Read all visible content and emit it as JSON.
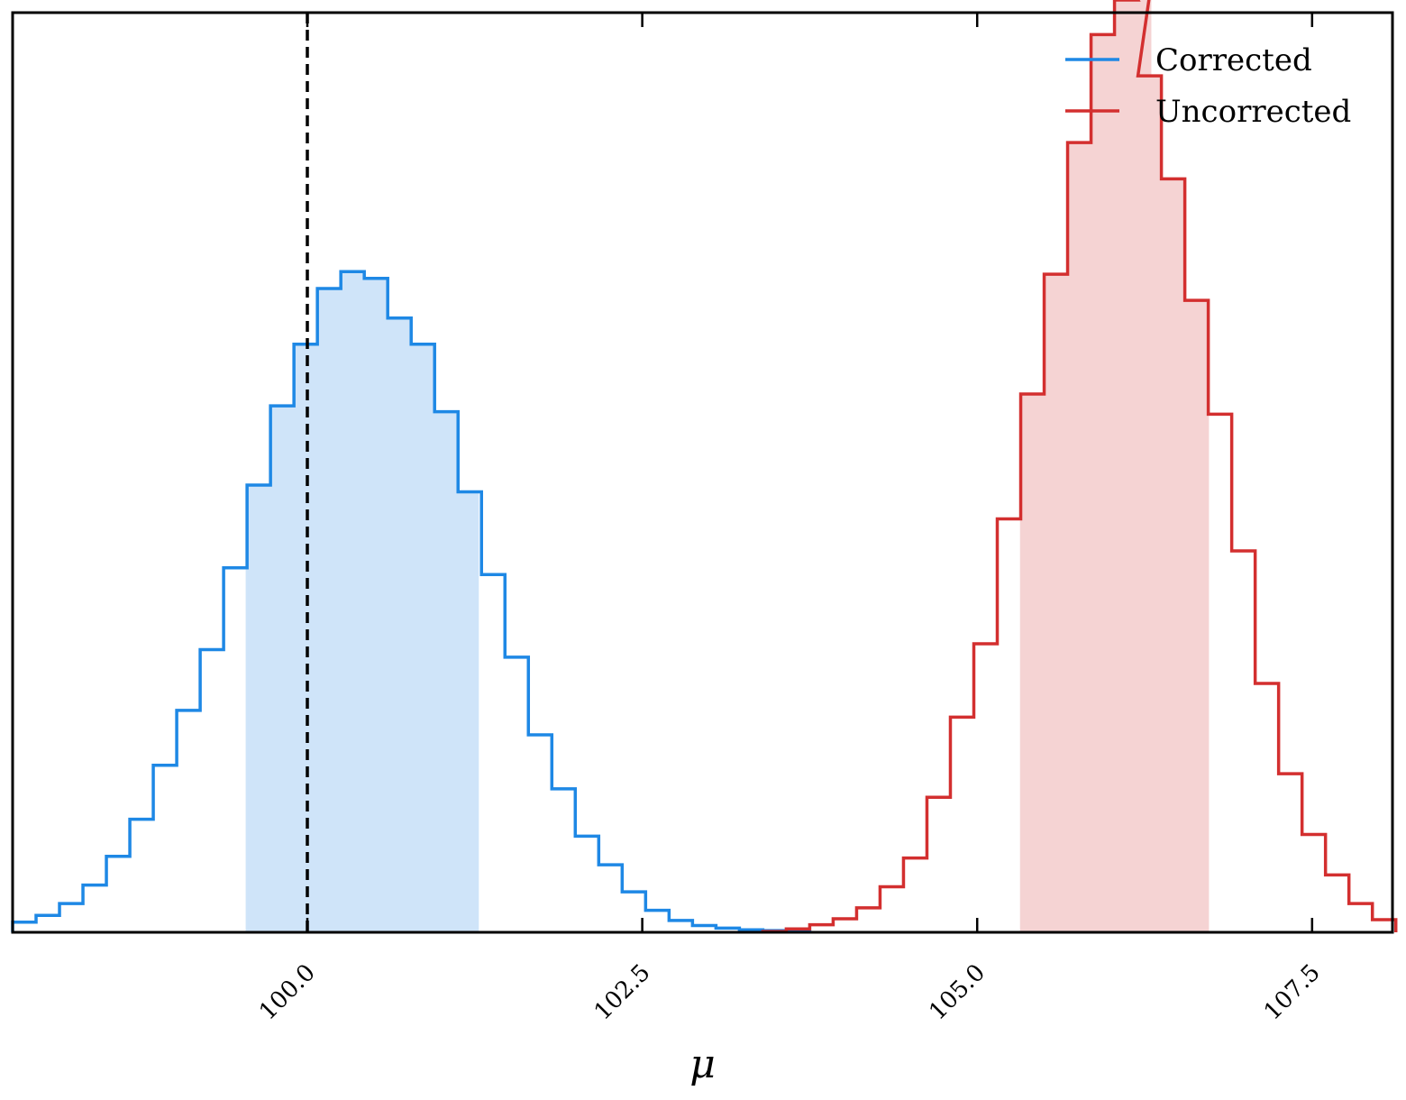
{
  "chart_data": {
    "type": "histogram",
    "title": "",
    "xlabel": "μ",
    "ylabel": "",
    "xlim": [
      97.8,
      108.1
    ],
    "ylim": [
      0,
      1.09
    ],
    "xticks": [
      100.0,
      102.5,
      105.0,
      107.5
    ],
    "xtick_labels": [
      "100.0",
      "102.5",
      "105.0",
      "107.5"
    ],
    "yticks_shown": false,
    "grid": false,
    "legend_position": "top-right",
    "reference_line": {
      "x": 100.0,
      "style": "dashed",
      "color": "#000000"
    },
    "series": [
      {
        "name": "Corrected",
        "color": "#1e88e5",
        "fill_color": "#cfe4f9",
        "shaded_interval": [
          99.55,
          101.27
        ],
        "bins_left": [
          97.8,
          97.975,
          98.15,
          98.325,
          98.5,
          98.675,
          98.85,
          99.025,
          99.2,
          99.375,
          99.55,
          99.725,
          99.9,
          100.075,
          100.25,
          100.425,
          100.6,
          100.775,
          100.95,
          101.125,
          101.3,
          101.475,
          101.65,
          101.825,
          102.0,
          102.175,
          102.35,
          102.525,
          102.7,
          102.875,
          103.05,
          103.225,
          103.4,
          103.575
        ],
        "bin_width": 0.175,
        "values": [
          0.012,
          0.02,
          0.034,
          0.056,
          0.09,
          0.134,
          0.198,
          0.263,
          0.335,
          0.432,
          0.53,
          0.624,
          0.697,
          0.763,
          0.783,
          0.775,
          0.728,
          0.697,
          0.617,
          0.522,
          0.424,
          0.326,
          0.234,
          0.17,
          0.114,
          0.08,
          0.048,
          0.026,
          0.014,
          0.008,
          0.005,
          0.003,
          0.002,
          0.001
        ]
      },
      {
        "name": "Uncorrected",
        "color": "#d32f2f",
        "fill_color": "#f5d3d3",
        "shaded_interval": [
          105.33,
          106.72
        ],
        "bins_left": [
          103.4,
          103.575,
          103.75,
          103.925,
          104.1,
          104.275,
          104.45,
          104.625,
          104.8,
          104.975,
          105.15,
          105.325,
          105.5,
          105.675,
          105.85,
          106.025,
          106.125,
          106.2,
          106.375,
          106.55,
          106.725,
          106.9,
          107.075,
          107.25,
          107.425,
          107.6,
          107.775,
          107.95
        ],
        "bin_width": 0.175,
        "values": [
          0.001,
          0.004,
          0.009,
          0.016,
          0.029,
          0.054,
          0.088,
          0.16,
          0.255,
          0.342,
          0.49,
          0.638,
          0.78,
          0.936,
          1.064,
          1.105,
          1.125,
          1.015,
          0.893,
          0.749,
          0.614,
          0.452,
          0.295,
          0.188,
          0.116,
          0.068,
          0.034,
          0.015
        ]
      }
    ]
  }
}
